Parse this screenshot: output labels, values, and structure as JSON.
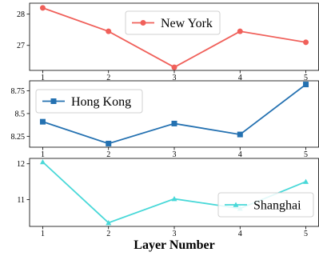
{
  "chart_data": [
    {
      "type": "line",
      "x": [
        1,
        2,
        3,
        4,
        5
      ],
      "series": [
        {
          "name": "New York",
          "values": [
            28.2,
            27.45,
            26.3,
            27.45,
            27.1
          ],
          "color": "#f0605a",
          "marker": "circle"
        }
      ],
      "ylim": [
        26.2,
        28.35
      ],
      "yticks": [
        27,
        28
      ],
      "xticks": [
        1,
        2,
        3,
        4,
        5
      ],
      "legend": "top-center",
      "grid": false
    },
    {
      "type": "line",
      "x": [
        1,
        2,
        3,
        4,
        5
      ],
      "series": [
        {
          "name": "Hong Kong",
          "values": [
            8.41,
            8.17,
            8.39,
            8.27,
            8.82
          ],
          "color": "#2471b1",
          "marker": "square"
        }
      ],
      "ylim": [
        8.13,
        8.86
      ],
      "yticks": [
        8.25,
        8.5,
        8.75
      ],
      "xticks": [
        1,
        2,
        3,
        4,
        5
      ],
      "legend": "top-left",
      "grid": false
    },
    {
      "type": "line",
      "x": [
        1,
        2,
        3,
        4,
        5
      ],
      "series": [
        {
          "name": "Shanghai",
          "values": [
            12.05,
            10.35,
            11.02,
            10.75,
            11.5
          ],
          "color": "#48d8d8",
          "marker": "triangle"
        }
      ],
      "ylim": [
        10.25,
        12.15
      ],
      "yticks": [
        11,
        12
      ],
      "xticks": [
        1,
        2,
        3,
        4,
        5
      ],
      "legend": "bottom-right",
      "grid": false
    }
  ],
  "xlabel": "Layer Number"
}
